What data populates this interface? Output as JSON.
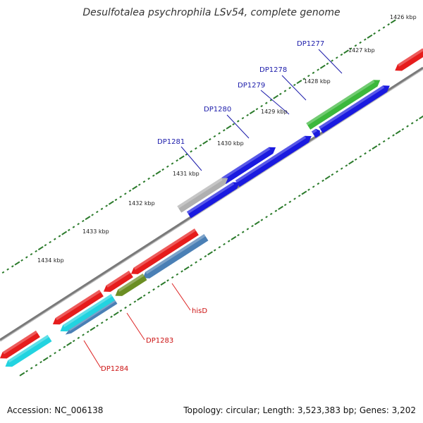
{
  "title": "Desulfotalea psychrophila LSv54, complete genome",
  "footer": {
    "accession": "Accession: NC_006138",
    "topology": "Topology: circular; Length: 3,523,383 bp; Genes: 3,202"
  },
  "colors": {
    "backbone": "#7a7a7a",
    "tick": "#2a7a2a",
    "label_forward": "#1a1aaa",
    "label_reverse": "#cc1111",
    "leader_forward": "#1a1aaa",
    "leader_reverse": "#dd2222"
  },
  "ticks": {
    "labels": [
      "1426 kbp",
      "1427 kbp",
      "1428 kbp",
      "1429 kbp",
      "1430 kbp",
      "1431 kbp",
      "1432 kbp",
      "1433 kbp",
      "1434 kbp"
    ]
  },
  "genes": [
    {
      "name": "DP1277",
      "strand": "forward",
      "color": "#3cb83c"
    },
    {
      "name": "DP1278",
      "strand": "forward",
      "color": "#1a1ae0"
    },
    {
      "name": "DP1279",
      "strand": "forward",
      "color": "#1a1ae0"
    },
    {
      "name": "DP1280",
      "strand": "forward",
      "color": "#1a1ae0"
    },
    {
      "name": "DP1281",
      "strand": "forward",
      "color": "#b0b0b0"
    },
    {
      "name": "hisD",
      "strand": "reverse",
      "color": "#e61c1c"
    },
    {
      "name": "DP1283",
      "strand": "reverse",
      "color": "#6b8e23"
    },
    {
      "name": "DP1284",
      "strand": "reverse",
      "color": "#22d3e0"
    }
  ]
}
